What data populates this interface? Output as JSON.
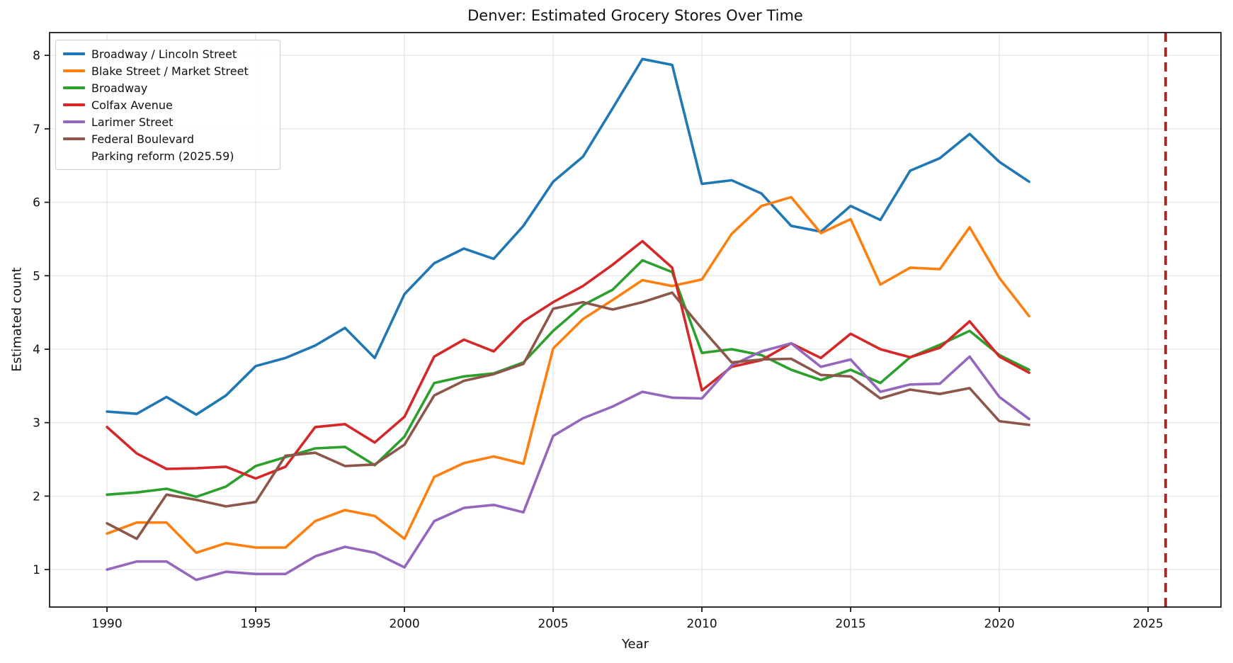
{
  "chart_data": {
    "type": "line",
    "title": "Denver: Estimated Grocery Stores Over Time",
    "xlabel": "Year",
    "ylabel": "Estimated count",
    "grid": true,
    "legend_position": "upper left",
    "xticks": [
      1990,
      1995,
      2000,
      2005,
      2010,
      2015,
      2020,
      2025
    ],
    "yticks": [
      1,
      2,
      3,
      4,
      5,
      6,
      7,
      8
    ],
    "xlim": [
      1988.07,
      2027.45
    ],
    "ylim": [
      0.49,
      8.31
    ],
    "x": [
      1990,
      1991,
      1992,
      1993,
      1994,
      1995,
      1996,
      1997,
      1998,
      1999,
      2000,
      2001,
      2002,
      2003,
      2004,
      2005,
      2006,
      2007,
      2008,
      2009,
      2010,
      2011,
      2012,
      2013,
      2014,
      2015,
      2016,
      2017,
      2018,
      2019,
      2020,
      2021
    ],
    "series": [
      {
        "name": "Broadway / Lincoln Street",
        "color": "#1f77b4",
        "values": [
          3.15,
          3.12,
          3.35,
          3.11,
          3.37,
          3.77,
          3.88,
          4.05,
          4.29,
          3.88,
          4.75,
          5.17,
          5.37,
          5.23,
          5.68,
          6.28,
          6.62,
          7.28,
          7.95,
          7.87,
          6.25,
          6.3,
          6.12,
          5.68,
          5.6,
          5.95,
          5.76,
          6.43,
          6.6,
          6.93,
          6.55,
          6.28
        ]
      },
      {
        "name": "Blake Street / Market Street",
        "color": "#ff7f0e",
        "values": [
          1.49,
          1.64,
          1.64,
          1.23,
          1.36,
          1.3,
          1.3,
          1.66,
          1.81,
          1.73,
          1.42,
          2.26,
          2.45,
          2.54,
          2.44,
          4.01,
          4.41,
          4.67,
          4.94,
          4.86,
          4.95,
          5.57,
          5.95,
          6.07,
          5.58,
          5.77,
          4.88,
          5.11,
          5.09,
          5.66,
          4.97,
          4.45
        ]
      },
      {
        "name": "Broadway",
        "color": "#2ca02c",
        "values": [
          2.02,
          2.05,
          2.1,
          1.99,
          2.13,
          2.41,
          2.53,
          2.65,
          2.67,
          2.42,
          2.81,
          3.54,
          3.63,
          3.67,
          3.82,
          4.25,
          4.6,
          4.81,
          5.21,
          5.05,
          3.95,
          4.0,
          3.92,
          3.72,
          3.58,
          3.72,
          3.54,
          3.89,
          4.06,
          4.25,
          3.92,
          3.72
        ]
      },
      {
        "name": "Colfax Avenue",
        "color": "#d62728",
        "values": [
          2.94,
          2.58,
          2.37,
          2.38,
          2.4,
          2.24,
          2.4,
          2.94,
          2.98,
          2.73,
          3.08,
          3.9,
          4.13,
          3.97,
          4.38,
          4.64,
          4.86,
          5.15,
          5.47,
          5.11,
          3.44,
          3.76,
          3.85,
          4.08,
          3.88,
          4.21,
          4.0,
          3.89,
          4.02,
          4.38,
          3.9,
          3.68
        ]
      },
      {
        "name": "Larimer Street",
        "color": "#9467bd",
        "values": [
          1.0,
          1.11,
          1.11,
          0.86,
          0.97,
          0.94,
          0.94,
          1.18,
          1.31,
          1.23,
          1.03,
          1.66,
          1.84,
          1.88,
          1.78,
          2.82,
          3.06,
          3.22,
          3.42,
          3.34,
          3.33,
          3.78,
          3.97,
          4.08,
          3.76,
          3.86,
          3.42,
          3.52,
          3.53,
          3.9,
          3.35,
          3.05
        ]
      },
      {
        "name": "Federal Boulevard",
        "color": "#8c564b",
        "values": [
          1.63,
          1.42,
          2.02,
          1.95,
          1.86,
          1.92,
          2.55,
          2.59,
          2.41,
          2.43,
          2.7,
          3.37,
          3.57,
          3.66,
          3.8,
          4.55,
          4.64,
          4.54,
          4.64,
          4.77,
          4.28,
          3.82,
          3.86,
          3.87,
          3.65,
          3.63,
          3.33,
          3.45,
          3.39,
          3.47,
          3.02,
          2.97
        ]
      }
    ],
    "annotation_line": {
      "label": "Parking reform (2025.59)",
      "x": 2025.59,
      "color": "#a52a2a",
      "dashed": true
    }
  },
  "style": {
    "grid_color": "#e7e7e7",
    "spine_color": "#1a1a1a",
    "tick_color": "#1a1a1a",
    "line_width": 3.6
  }
}
